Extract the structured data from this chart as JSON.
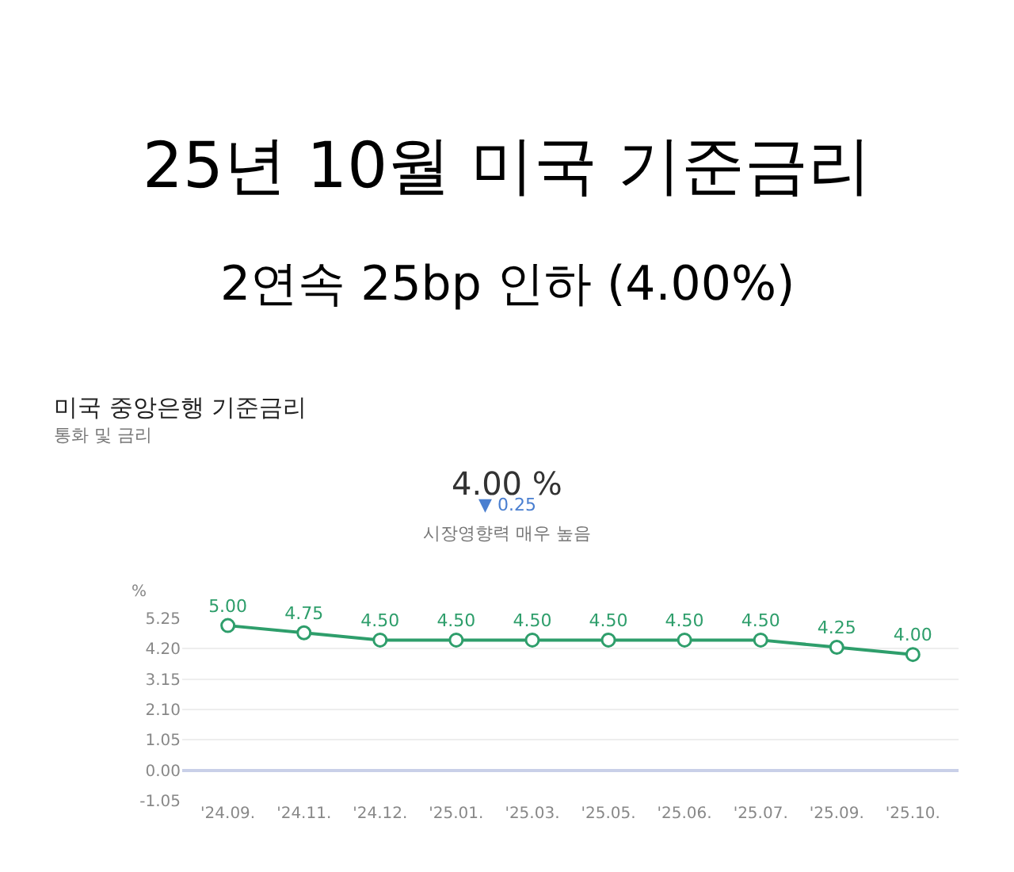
{
  "chart_data": {
    "type": "line",
    "title": "25년 10월 미국 기준금리",
    "subtitle": "2연속 25bp 인하 (4.00%)",
    "ylabel": "%",
    "categories": [
      "'24.09.",
      "'24.11.",
      "'24.12.",
      "'25.01.",
      "'25.03.",
      "'25.05.",
      "'25.06.",
      "'25.07.",
      "'25.09.",
      "'25.10."
    ],
    "series": [
      {
        "color": "#2e9e6b",
        "values": [
          5.0,
          4.75,
          4.5,
          4.5,
          4.5,
          4.5,
          4.5,
          4.5,
          4.25,
          4.0
        ],
        "value_labels": [
          "5.00",
          "4.75",
          "4.50",
          "4.50",
          "4.50",
          "4.50",
          "4.50",
          "4.50",
          "4.25",
          "4.00"
        ]
      }
    ],
    "marker": "circle",
    "line_style": "solid",
    "grid": "y",
    "legend": false,
    "ylim": [
      -1.05,
      5.25
    ],
    "yticks": [
      -1.05,
      {
        "value": 0,
        "label": "0.00"
      },
      1.05,
      {
        "value": 2.1,
        "label": "2.10"
      },
      3.15,
      {
        "value": 4.2,
        "label": "4.20"
      },
      5.25
    ],
    "annotations": [
      "미국 중앙은행 기준금리",
      "통화 및 금리",
      "4.00 %",
      "▼ 0.25",
      "시장영향력 매우 높음"
    ]
  }
}
